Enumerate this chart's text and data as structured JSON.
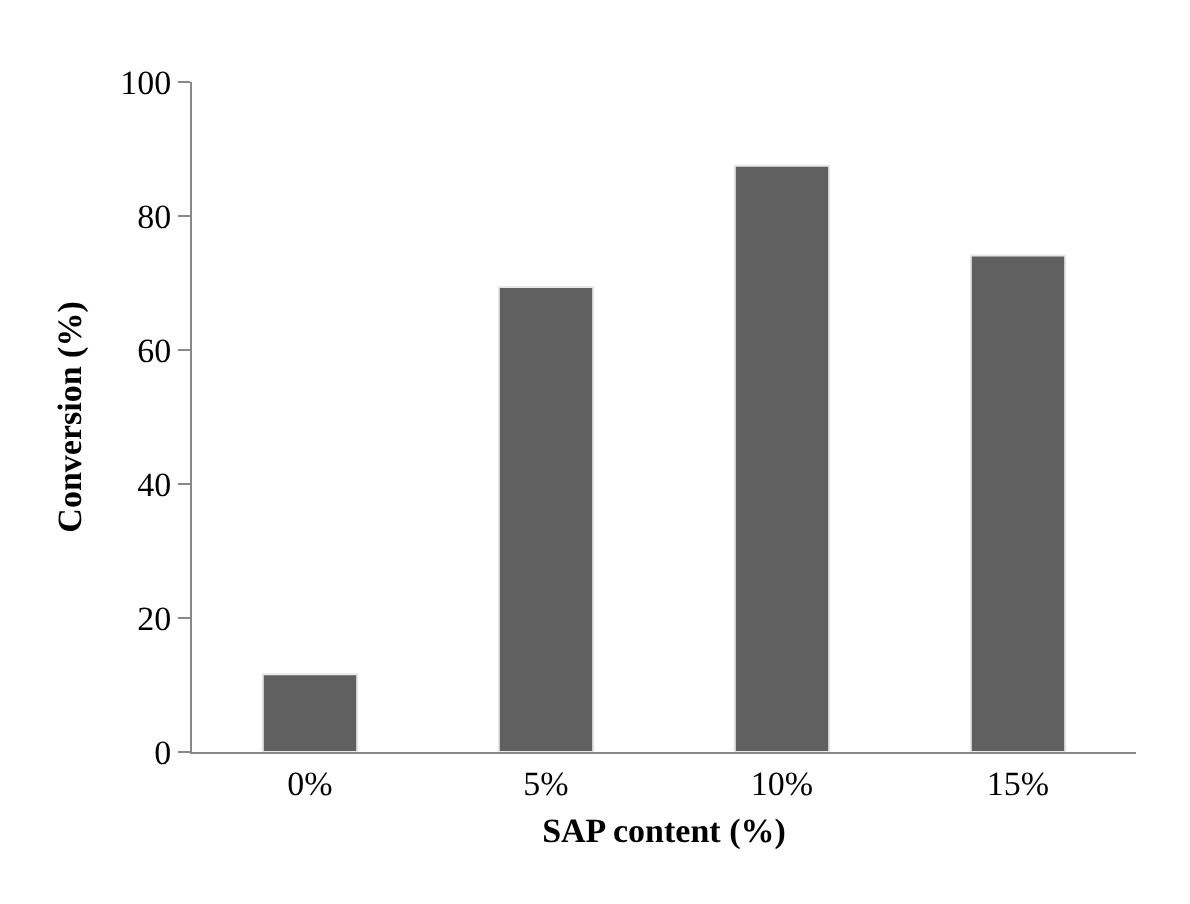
{
  "chart_data": {
    "type": "bar",
    "xlabel": "SAP content (%)",
    "ylabel": "Conversion (%)",
    "categories": [
      "0%",
      "5%",
      "10%",
      "15%"
    ],
    "values": [
      11.6,
      69.4,
      87.5,
      74.1
    ],
    "color": "#606060",
    "ylim": [
      0,
      100
    ],
    "yticks": [
      0,
      20,
      40,
      60,
      80,
      100
    ]
  }
}
